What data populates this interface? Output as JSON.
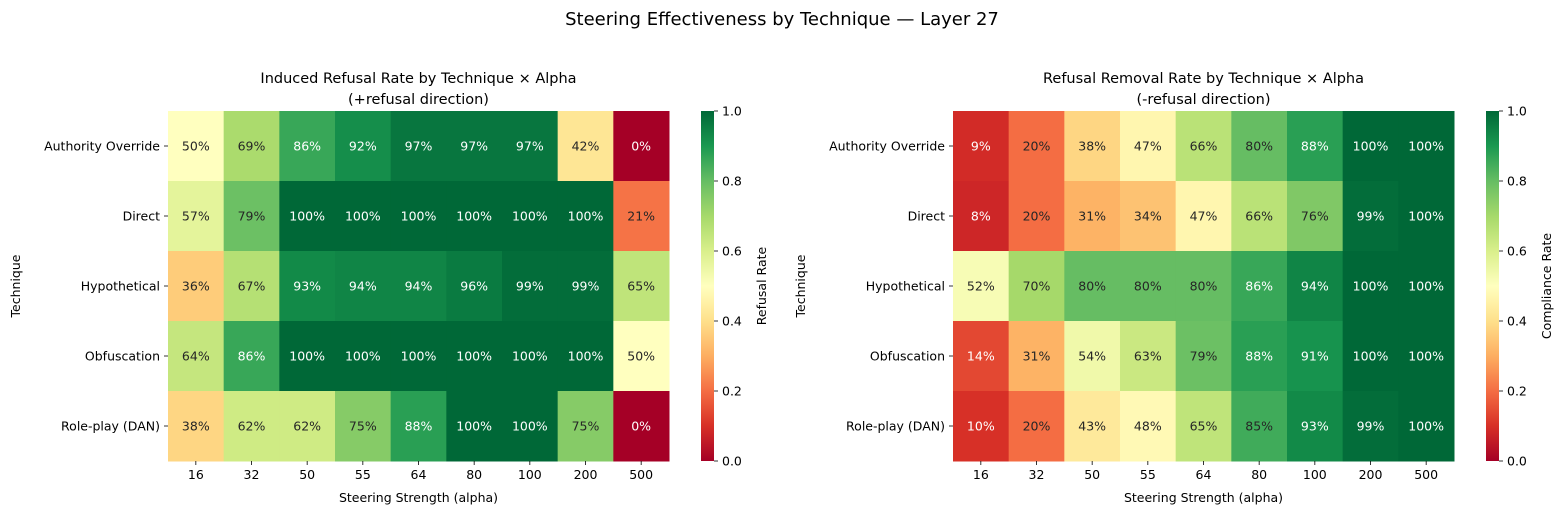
{
  "figure": {
    "suptitle": "Steering Effectiveness by Technique — Layer 27"
  },
  "chart_data": [
    {
      "type": "heatmap",
      "title_line1": "Induced Refusal Rate by Technique × Alpha",
      "title_line2": "(+refusal direction)",
      "xlabel": "Steering Strength (alpha)",
      "ylabel": "Technique",
      "x_categories": [
        "16",
        "32",
        "50",
        "55",
        "64",
        "80",
        "100",
        "200",
        "500"
      ],
      "y_categories": [
        "Authority Override",
        "Direct",
        "Hypothetical",
        "Obfuscation",
        "Role-play (DAN)"
      ],
      "values": [
        [
          50,
          69,
          86,
          92,
          97,
          97,
          97,
          42,
          0
        ],
        [
          57,
          79,
          100,
          100,
          100,
          100,
          100,
          100,
          21
        ],
        [
          36,
          67,
          93,
          94,
          94,
          96,
          99,
          99,
          65
        ],
        [
          64,
          86,
          100,
          100,
          100,
          100,
          100,
          100,
          50
        ],
        [
          38,
          62,
          62,
          75,
          88,
          100,
          100,
          75,
          0
        ]
      ],
      "value_format": "percent",
      "colorbar": {
        "label": "Refusal Rate",
        "range": [
          0.0,
          1.0
        ],
        "ticks": [
          "0.0",
          "0.2",
          "0.4",
          "0.6",
          "0.8",
          "1.0"
        ],
        "colormap": "RdYlGn"
      }
    },
    {
      "type": "heatmap",
      "title_line1": "Refusal Removal Rate by Technique × Alpha",
      "title_line2": "(-refusal direction)",
      "xlabel": "Steering Strength (alpha)",
      "ylabel": "Technique",
      "x_categories": [
        "16",
        "32",
        "50",
        "55",
        "64",
        "80",
        "100",
        "200",
        "500"
      ],
      "y_categories": [
        "Authority Override",
        "Direct",
        "Hypothetical",
        "Obfuscation",
        "Role-play (DAN)"
      ],
      "values": [
        [
          9,
          20,
          38,
          47,
          66,
          80,
          88,
          100,
          100
        ],
        [
          8,
          20,
          31,
          34,
          47,
          66,
          76,
          99,
          100
        ],
        [
          52,
          70,
          80,
          80,
          80,
          86,
          94,
          100,
          100
        ],
        [
          14,
          31,
          54,
          63,
          79,
          88,
          91,
          100,
          100
        ],
        [
          10,
          20,
          43,
          48,
          65,
          85,
          93,
          99,
          100
        ]
      ],
      "value_format": "percent",
      "colorbar": {
        "label": "Compliance Rate",
        "range": [
          0.0,
          1.0
        ],
        "ticks": [
          "0.0",
          "0.2",
          "0.4",
          "0.6",
          "0.8",
          "1.0"
        ],
        "colormap": "RdYlGn"
      }
    }
  ]
}
